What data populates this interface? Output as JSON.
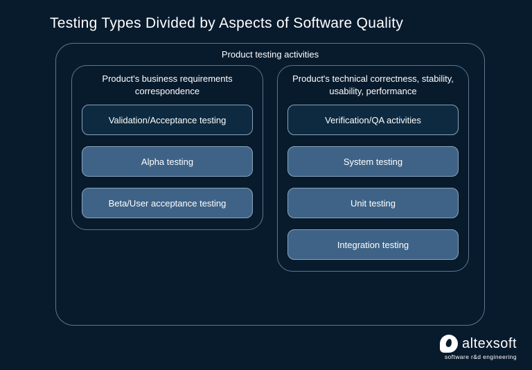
{
  "type": "infographic",
  "background_color": "#081b2d",
  "border_color": "#5a7890",
  "box_border_color": "#8aa5bb",
  "box_dark_fill": "#0d2a40",
  "box_light_fill": "#3e6387",
  "text_color": "#ffffff",
  "title": "Testing Types Divided by Aspects of Software Quality",
  "title_fontsize": 21,
  "label_fontsize": 13,
  "outer": {
    "label": "Product testing activities",
    "border_radius": 26
  },
  "columns": [
    {
      "label": "Product's business requirements correspondence",
      "boxes": [
        {
          "label": "Validation/Acceptance testing",
          "style": "dark"
        },
        {
          "label": "Alpha testing",
          "style": "light"
        },
        {
          "label": "Beta/User acceptance testing",
          "style": "light"
        }
      ]
    },
    {
      "label": "Product's technical correctness, stability, usability, performance",
      "boxes": [
        {
          "label": "Verification/QA activities",
          "style": "dark"
        },
        {
          "label": "System testing",
          "style": "light"
        },
        {
          "label": "Unit testing",
          "style": "light"
        },
        {
          "label": "Integration testing",
          "style": "light"
        }
      ]
    }
  ],
  "logo": {
    "name": "altexsoft",
    "tagline": "software r&d engineering"
  }
}
